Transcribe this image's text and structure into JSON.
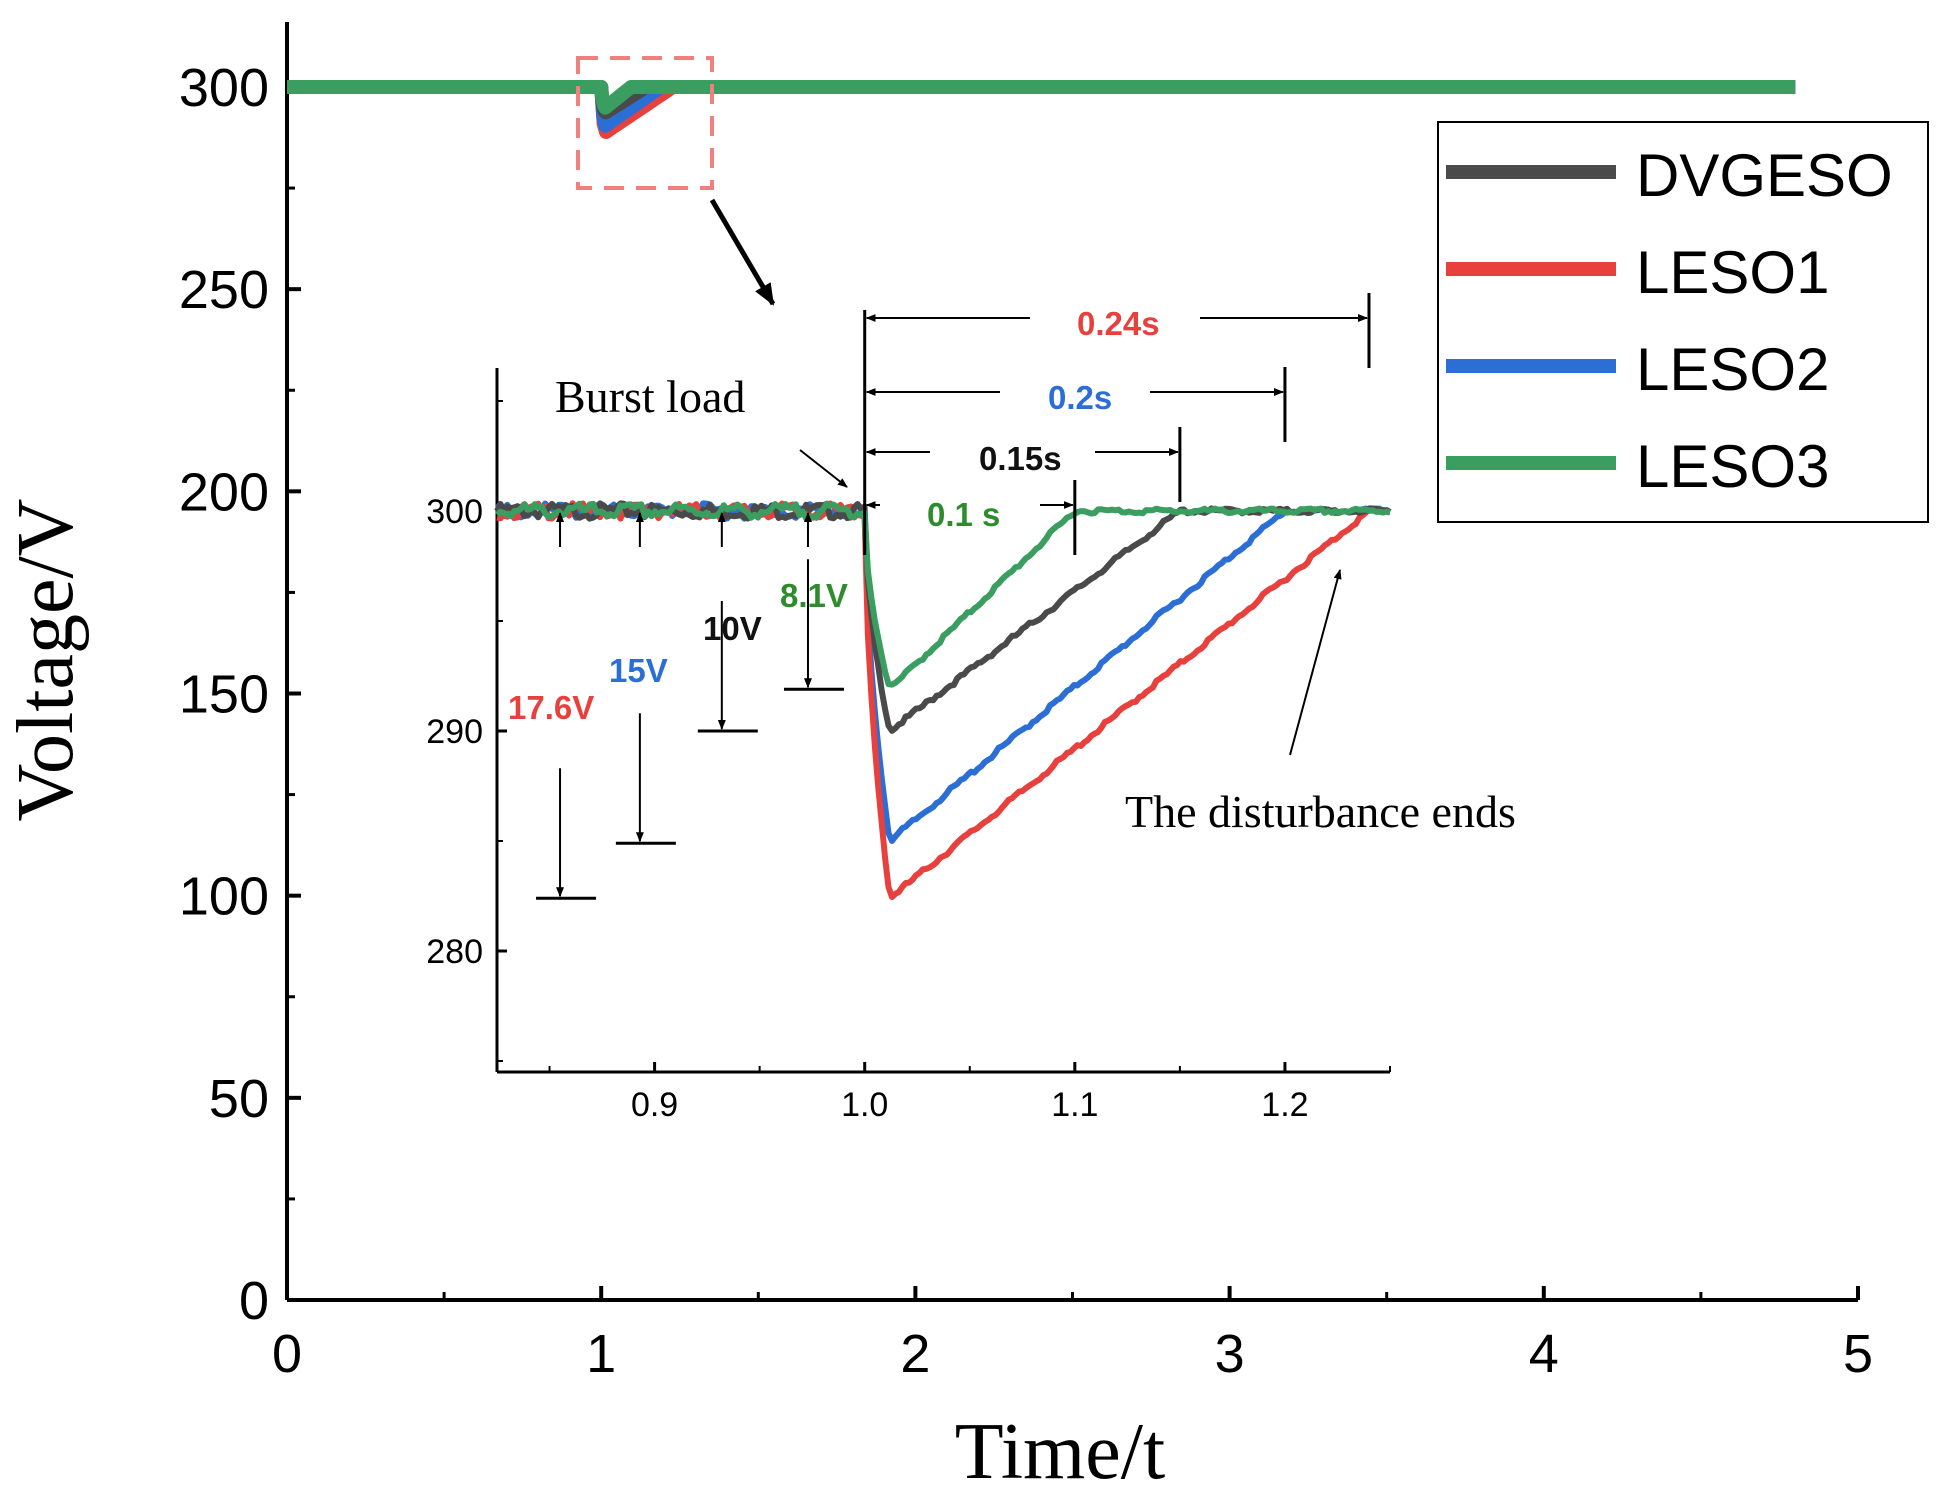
{
  "chart_data": [
    {
      "type": "line",
      "role": "main",
      "xlabel": "Time/t",
      "ylabel": "Voltage/V",
      "xlim": [
        0,
        5
      ],
      "ylim": [
        0,
        300
      ],
      "x_ticks": [
        0,
        1,
        2,
        3,
        4,
        5
      ],
      "y_ticks": [
        0,
        50,
        100,
        150,
        200,
        250,
        300
      ],
      "x_tick_labels": [
        "0",
        "1",
        "2",
        "3",
        "4",
        "5"
      ],
      "y_tick_labels": [
        "0",
        "50",
        "100",
        "150",
        "200",
        "250",
        "300"
      ],
      "legend_position": "top-right",
      "series": [
        {
          "name": "DVGESO",
          "color": "#4a4a4a",
          "steady": 300,
          "disturb_start": 1.0,
          "min_time": 1.012,
          "min_value": 290.0,
          "recover_time": 1.15
        },
        {
          "name": "LESO1",
          "color": "#e8413d",
          "steady": 300,
          "disturb_start": 1.0,
          "min_time": 1.012,
          "min_value": 282.4,
          "recover_time": 1.24
        },
        {
          "name": "LESO2",
          "color": "#2b6fd6",
          "steady": 300,
          "disturb_start": 1.0,
          "min_time": 1.012,
          "min_value": 285.0,
          "recover_time": 1.2
        },
        {
          "name": "LESO3",
          "color": "#3a9e60",
          "steady": 300,
          "disturb_start": 1.0,
          "min_time": 1.012,
          "min_value": 291.9,
          "recover_time": 1.1
        }
      ]
    },
    {
      "type": "line",
      "role": "inset",
      "xlim": [
        0.825,
        1.25
      ],
      "ylim": [
        274.5,
        306.5
      ],
      "x_ticks": [
        0.9,
        1.0,
        1.1,
        1.2
      ],
      "x_tick_labels": [
        "0.9",
        "1.0",
        "1.1",
        "1.2"
      ],
      "y_ticks": [
        280,
        290,
        300
      ],
      "y_tick_labels": [
        "280",
        "290",
        "300"
      ],
      "annotations": {
        "burst_load": "Burst load",
        "disturbance_ends": "The disturbance ends",
        "drops": [
          {
            "label": "17.6V",
            "color": "#e8413d"
          },
          {
            "label": "15V",
            "color": "#2b6fd6"
          },
          {
            "label": "10V",
            "color": "#111111"
          },
          {
            "label": "8.1V",
            "color": "#2e8b2e"
          }
        ],
        "durations": [
          {
            "label": "0.24s",
            "color": "#e8413d"
          },
          {
            "label": "0.2s",
            "color": "#2b6fd6"
          },
          {
            "label": "0.15s",
            "color": "#111111"
          },
          {
            "label": "0.1 s",
            "color": "#2e8b2e"
          }
        ]
      }
    }
  ]
}
